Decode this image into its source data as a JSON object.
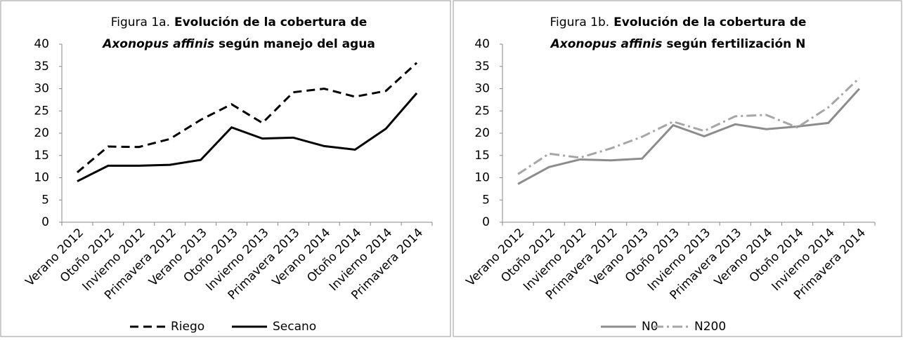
{
  "chart_data": [
    {
      "type": "line",
      "title": [
        "Figura 1a.",
        "Evolución de la cobertura de",
        "Axonopus affinis",
        "según manejo del agua"
      ],
      "categories": [
        "Verano 2012",
        "Otoño 2012",
        "Invierno 2012",
        "Primavera 2012",
        "Verano 2013",
        "Otoño 2013",
        "Invierno 2013",
        "Primavera 2013",
        "Verano 2014",
        "Otoño 2014",
        "Invierno 2014",
        "Primavera 2014"
      ],
      "series": [
        {
          "name": "Riego",
          "color": "#000000",
          "dash": "dashed",
          "values": [
            11.2,
            17,
            16.9,
            18.7,
            23,
            26.5,
            22.3,
            29.2,
            30,
            28.2,
            29.5,
            35.8
          ]
        },
        {
          "name": "Secano",
          "color": "#000000",
          "dash": "solid",
          "values": [
            9.2,
            12.7,
            12.7,
            12.9,
            14,
            21.3,
            18.8,
            19,
            17.1,
            16.3,
            21,
            29
          ]
        }
      ],
      "ylim": [
        0,
        40
      ],
      "yticks": [
        0,
        5,
        10,
        15,
        20,
        25,
        30,
        35,
        40
      ],
      "legend": "bottom"
    },
    {
      "type": "line",
      "title": [
        "Figura 1b.",
        "Evolución de la cobertura de",
        "Axonopus affinis",
        "según fertilización N"
      ],
      "categories": [
        "Verano 2012",
        "Otoño 2012",
        "Invierno 2012",
        "Primavera 2012",
        "Verano 2013",
        "Otoño 2013",
        "Invierno 2013",
        "Primavera 2013",
        "Verano 2014",
        "Otoño 2014",
        "Invierno 2014",
        "Primavera 2014"
      ],
      "series": [
        {
          "name": "N0",
          "color": "#8c8c8c",
          "dash": "solid",
          "values": [
            8.6,
            12.4,
            14.1,
            13.9,
            14.3,
            21.8,
            19.3,
            22,
            20.9,
            21.5,
            22.3,
            30
          ]
        },
        {
          "name": "N200",
          "color": "#a6a6a6",
          "dash": "dashdot",
          "values": [
            10.8,
            15.4,
            14.5,
            16.6,
            19.2,
            22.6,
            20.5,
            23.8,
            24.1,
            21.3,
            25.8,
            32.4
          ]
        }
      ],
      "ylim": [
        0,
        40
      ],
      "yticks": [
        0,
        5,
        10,
        15,
        20,
        25,
        30,
        35,
        40
      ],
      "legend": "bottom"
    }
  ]
}
